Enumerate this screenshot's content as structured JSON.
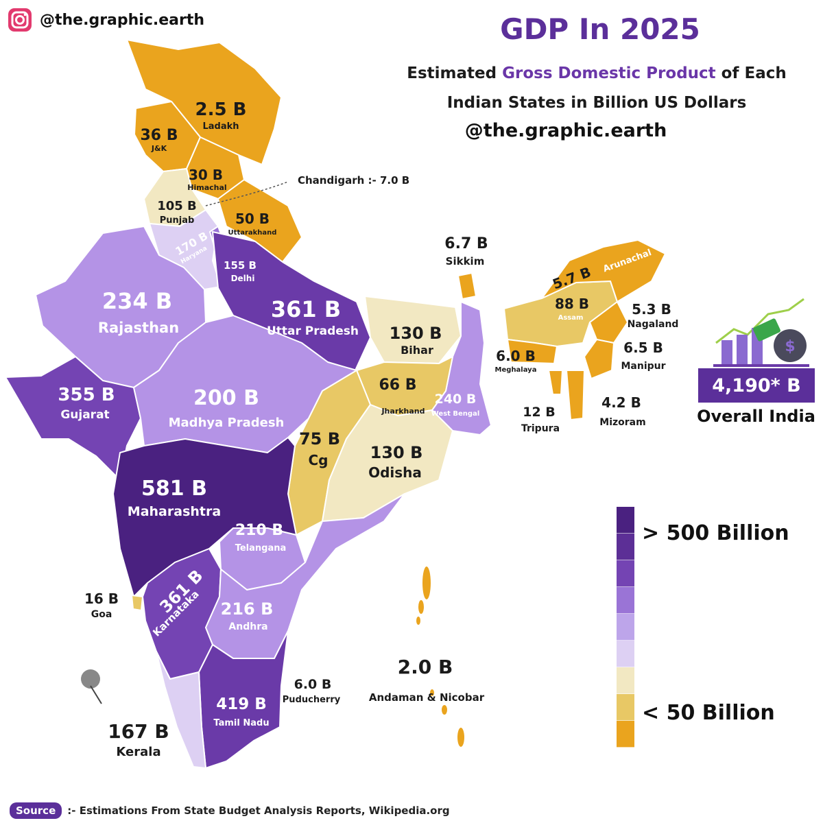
{
  "header": {
    "handle": "@the.graphic.earth",
    "title": "GDP In 2025",
    "subtitle_pre": "Estimated ",
    "subtitle_highlight": "Gross Domestic Product",
    "subtitle_post": " of Each",
    "subtitle_line2": "Indian States in Billion US Dollars",
    "subhandle": "@the.graphic.earth"
  },
  "states": {
    "ladakh": {
      "value": "2.5 B",
      "name": "Ladakh"
    },
    "jk": {
      "value": "36 B",
      "name": "J&K"
    },
    "himachal": {
      "value": "30 B",
      "name": "Himachal"
    },
    "chandigarh": {
      "label": "Chandigarh :- 7.0 B"
    },
    "punjab": {
      "value": "105 B",
      "name": "Punjab"
    },
    "uttarakhand": {
      "value": "50 B",
      "name": "Uttarakhand"
    },
    "haryana": {
      "value": "170 B",
      "name": "Haryana"
    },
    "delhi": {
      "value": "155 B",
      "name": "Delhi"
    },
    "rajasthan": {
      "value": "234 B",
      "name": "Rajasthan"
    },
    "up": {
      "value": "361 B",
      "name": "Uttar Pradesh"
    },
    "bihar": {
      "value": "130 B",
      "name": "Bihar"
    },
    "sikkim": {
      "value": "6.7 B",
      "name": "Sikkim"
    },
    "arunachal": {
      "value": "5.7 B",
      "name": "Arunachal"
    },
    "assam": {
      "value": "88 B",
      "name": "Assam"
    },
    "nagaland": {
      "value": "5.3 B",
      "name": "Nagaland"
    },
    "meghalaya": {
      "value": "6.0 B",
      "name": "Meghalaya"
    },
    "manipur": {
      "value": "6.5 B",
      "name": "Manipur"
    },
    "tripura": {
      "value": "12 B",
      "name": "Tripura"
    },
    "mizoram": {
      "value": "4.2 B",
      "name": "Mizoram"
    },
    "gujarat": {
      "value": "355 B",
      "name": "Gujarat"
    },
    "mp": {
      "value": "200 B",
      "name": "Madhya Pradesh"
    },
    "jharkhand": {
      "value": "66 B",
      "name": "Jharkhand"
    },
    "wb": {
      "value": "240 B",
      "name": "West Bengal"
    },
    "cg": {
      "value": "75 B",
      "name": "Cg"
    },
    "odisha": {
      "value": "130 B",
      "name": "Odisha"
    },
    "maharashtra": {
      "value": "581 B",
      "name": "Maharashtra"
    },
    "telangana": {
      "value": "210 B",
      "name": "Telangana"
    },
    "goa": {
      "value": "16 B",
      "name": "Goa"
    },
    "karnataka": {
      "value": "361 B",
      "name": "Karnataka"
    },
    "andhra": {
      "value": "216 B",
      "name": "Andhra"
    },
    "an": {
      "value": "2.0 B",
      "name": "Andaman & Nicobar"
    },
    "puducherry": {
      "value": "6.0 B",
      "name": "Puducherry"
    },
    "tn": {
      "value": "419 B",
      "name": "Tamil Nadu"
    },
    "kerala": {
      "value": "167 B",
      "name": "Kerala"
    }
  },
  "legend": {
    "high": "> 500 Billion",
    "low": "< 50 Billion",
    "colors": [
      "#4a2180",
      "#5c2f96",
      "#7444b3",
      "#9a74d6",
      "#bda5ea",
      "#ddd0f3",
      "#f2e8c2",
      "#e8c865",
      "#eaa41e"
    ]
  },
  "total": {
    "value": "4,190* B",
    "label": "Overall India"
  },
  "source": {
    "badge": "Source",
    "text": ":- Estimations From State Budget Analysis Reports, Wikipedia.org"
  },
  "colors": {
    "darkest": "#4a2180",
    "dark": "#6a3aa8",
    "medium": "#b493e6",
    "light": "#ddd0f3",
    "cream": "#f2e8c2",
    "gold": "#e8c865",
    "orange": "#eaa41e",
    "accent": "#5b2f9a"
  }
}
